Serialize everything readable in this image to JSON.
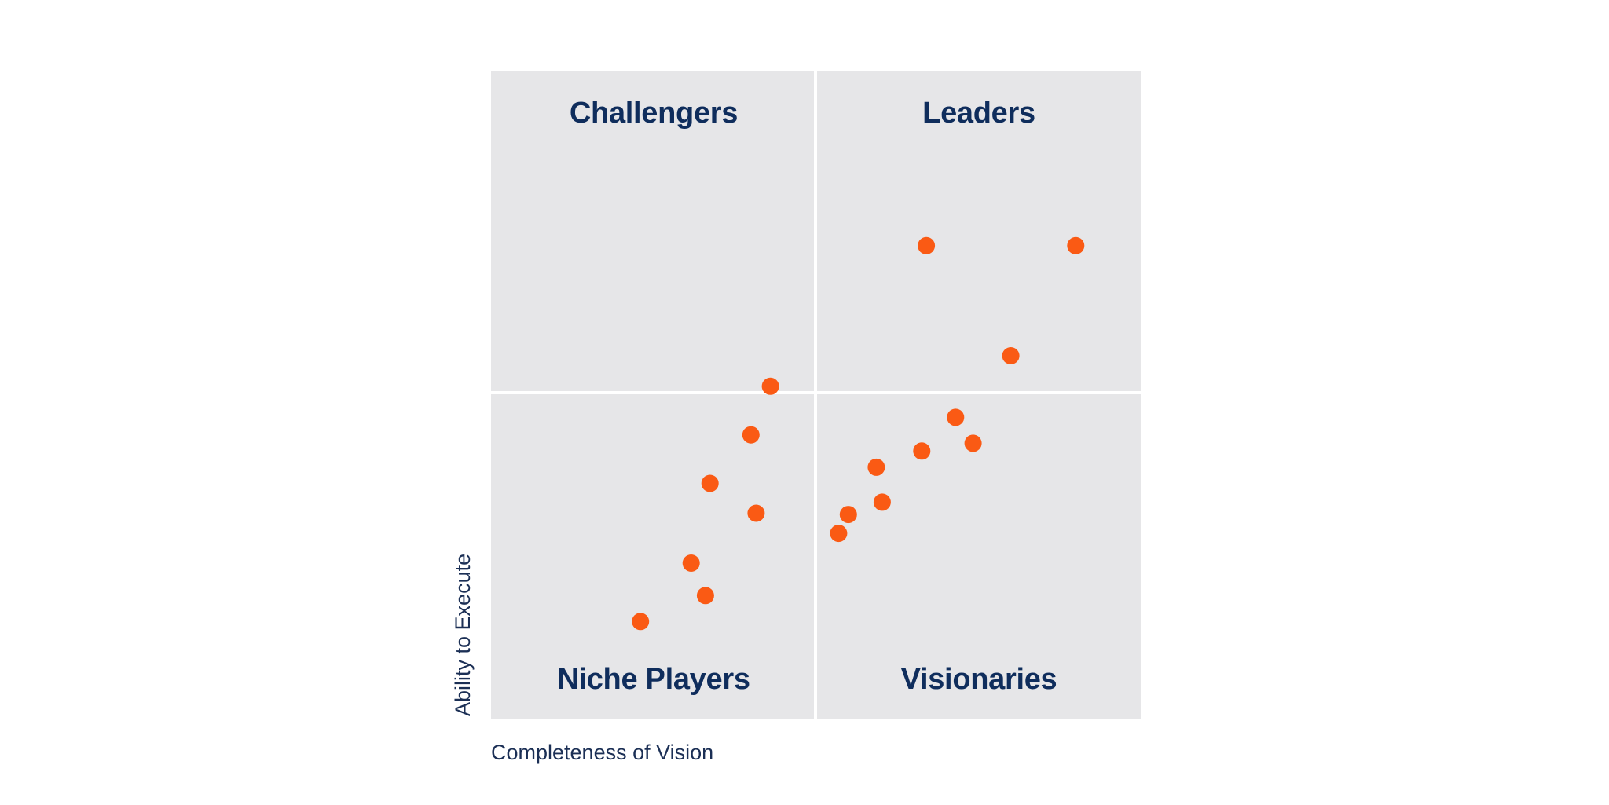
{
  "chart_data": {
    "type": "scatter",
    "title": "",
    "xlabel": "Completeness of Vision",
    "ylabel": "Ability to Execute",
    "xlim": [
      0,
      100
    ],
    "ylim": [
      0,
      100
    ],
    "grid": false,
    "quadrants": {
      "top_left": "Challengers",
      "top_right": "Leaders",
      "bottom_left": "Niche Players",
      "bottom_right": "Visionaries"
    },
    "point_color": "#fa5a14",
    "quadrant_color": "#e6e6e8",
    "label_color": "#0f2d5c",
    "series": [
      {
        "points": [
          {
            "x": 67.0,
            "y": 73.0
          },
          {
            "x": 90.0,
            "y": 73.0
          },
          {
            "x": 80.0,
            "y": 56.0
          },
          {
            "x": 43.0,
            "y": 51.3
          },
          {
            "x": 71.5,
            "y": 46.5
          },
          {
            "x": 40.0,
            "y": 43.8
          },
          {
            "x": 66.3,
            "y": 41.3
          },
          {
            "x": 74.2,
            "y": 42.5
          },
          {
            "x": 59.3,
            "y": 38.8
          },
          {
            "x": 33.7,
            "y": 36.3
          },
          {
            "x": 40.8,
            "y": 31.7
          },
          {
            "x": 60.2,
            "y": 33.4
          },
          {
            "x": 55.0,
            "y": 31.5
          },
          {
            "x": 53.5,
            "y": 28.6
          },
          {
            "x": 30.8,
            "y": 24.0
          },
          {
            "x": 33.0,
            "y": 19.0
          },
          {
            "x": 23.0,
            "y": 15.0
          }
        ]
      }
    ]
  }
}
